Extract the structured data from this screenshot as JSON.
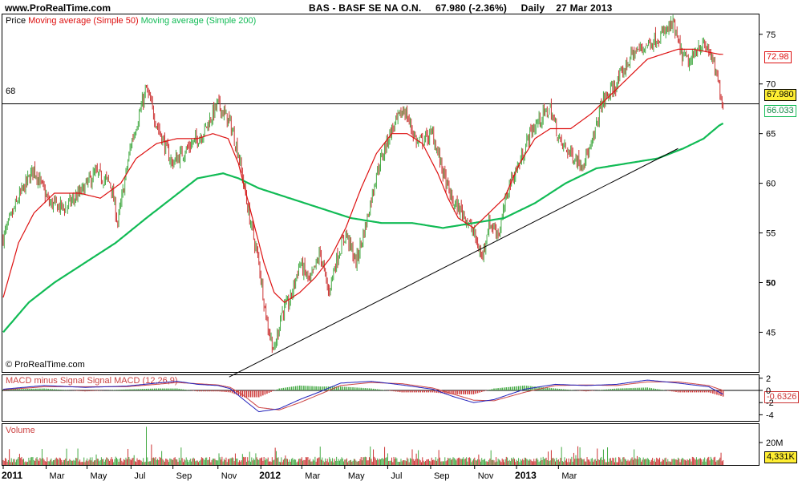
{
  "header": {
    "site": "www.ProRealTime.com",
    "symbol": "BAS - BASF SE NA O.N.",
    "quote": "67.980 (-2.36%)",
    "period": "Daily",
    "date": "27 Mar 2013"
  },
  "price_panel": {
    "legend_price": "Price",
    "legend_ma50": "Moving average (Simple 50)",
    "legend_ma200": "Moving average (Simple 200)",
    "hline_label": "68",
    "last_price_label": "67.980",
    "ma50_label": "72.98",
    "ma200_label": "66.033",
    "copyright": "© ProRealTime.com"
  },
  "macd_panel": {
    "legend": "MACD minus Signal Signal MACD (12,26,9)",
    "value_label": "-0.6326"
  },
  "volume_panel": {
    "legend": "Volume",
    "value_label": "4,331K"
  },
  "colors": {
    "ma50": "#dd1111",
    "ma200": "#11bb55",
    "candle_up": "#44aa44",
    "candle_down": "#cc3333",
    "last_price_bg": "#ffee33",
    "macd_line": "#2222bb",
    "signal_line": "#cc4444"
  },
  "chart_data": [
    {
      "type": "line",
      "title": "BAS - BASF SE NA O.N.",
      "subtitle": "Daily",
      "ylim": [
        41,
        77
      ],
      "y_ticks": [
        45,
        50,
        55,
        60,
        65,
        70,
        75
      ],
      "x_ticks": [
        "2011",
        "Mar",
        "May",
        "Jul",
        "Sep",
        "Nov",
        "2012",
        "Mar",
        "May",
        "Jul",
        "Sep",
        "Nov",
        "2013",
        "Mar"
      ],
      "price_anchors": [
        [
          0,
          54.5
        ],
        [
          15,
          58.5
        ],
        [
          30,
          61.5
        ],
        [
          45,
          58
        ],
        [
          60,
          57.5
        ],
        [
          75,
          59
        ],
        [
          90,
          61
        ],
        [
          105,
          60
        ],
        [
          112,
          56
        ],
        [
          125,
          64
        ],
        [
          140,
          69.5
        ],
        [
          150,
          66
        ],
        [
          165,
          62
        ],
        [
          180,
          63.5
        ],
        [
          195,
          65
        ],
        [
          210,
          68
        ],
        [
          222,
          66
        ],
        [
          230,
          63
        ],
        [
          240,
          57
        ],
        [
          250,
          52
        ],
        [
          258,
          46
        ],
        [
          265,
          43
        ],
        [
          272,
          47
        ],
        [
          280,
          48
        ],
        [
          290,
          52
        ],
        [
          300,
          50
        ],
        [
          310,
          53
        ],
        [
          318,
          49
        ],
        [
          325,
          52
        ],
        [
          335,
          55
        ],
        [
          345,
          52
        ],
        [
          355,
          56
        ],
        [
          365,
          61
        ],
        [
          378,
          65
        ],
        [
          392,
          67.5
        ],
        [
          405,
          64
        ],
        [
          420,
          65
        ],
        [
          433,
          60
        ],
        [
          440,
          58
        ],
        [
          450,
          57
        ],
        [
          460,
          55
        ],
        [
          468,
          52.5
        ],
        [
          475,
          56
        ],
        [
          485,
          55
        ],
        [
          495,
          60
        ],
        [
          505,
          62
        ],
        [
          515,
          65
        ],
        [
          525,
          66.5
        ],
        [
          535,
          67.5
        ],
        [
          545,
          64
        ],
        [
          555,
          63
        ],
        [
          565,
          62
        ],
        [
          575,
          63.5
        ],
        [
          585,
          68
        ],
        [
          600,
          70
        ],
        [
          615,
          73
        ],
        [
          630,
          74
        ],
        [
          645,
          75
        ],
        [
          655,
          76
        ],
        [
          663,
          73
        ],
        [
          672,
          72
        ],
        [
          680,
          74
        ],
        [
          690,
          73.5
        ],
        [
          697,
          71
        ],
        [
          704,
          68
        ]
      ],
      "series": [
        {
          "name": "Moving average (Simple 50)",
          "x": [
            0,
            15,
            30,
            50,
            75,
            95,
            115,
            130,
            150,
            170,
            190,
            205,
            220,
            230,
            240,
            255,
            265,
            275,
            290,
            305,
            320,
            335,
            350,
            365,
            380,
            395,
            410,
            425,
            435,
            445,
            460,
            475,
            490,
            505,
            520,
            535,
            555,
            575,
            595,
            615,
            630,
            645,
            660,
            675,
            690,
            700,
            704
          ],
          "values": [
            48.5,
            54,
            57,
            59,
            59,
            58.5,
            60,
            62.5,
            64,
            64.5,
            64.5,
            65,
            64.5,
            62,
            58,
            52,
            49,
            48,
            49,
            50.5,
            52.5,
            55.5,
            59.5,
            63,
            65,
            65,
            64,
            61,
            58.5,
            56.5,
            55.5,
            57,
            58.5,
            62,
            64.5,
            65.5,
            65.5,
            67,
            69,
            71,
            72.5,
            73,
            73.5,
            73.5,
            73.2,
            73.0,
            72.98
          ]
        },
        {
          "name": "Moving average (Simple 200)",
          "x": [
            0,
            25,
            50,
            80,
            110,
            140,
            165,
            190,
            215,
            230,
            250,
            280,
            310,
            340,
            370,
            400,
            430,
            460,
            490,
            520,
            550,
            580,
            610,
            640,
            665,
            685,
            700,
            704
          ],
          "values": [
            45,
            48,
            50,
            52,
            54,
            56.5,
            58.5,
            60.5,
            61,
            60.5,
            59.5,
            58.5,
            57.5,
            56.5,
            56,
            56,
            55.5,
            56,
            56.5,
            58,
            60,
            61.5,
            62,
            62.5,
            63.5,
            64.5,
            65.8,
            66.033
          ]
        },
        {
          "name": "trendline",
          "x": [
            221,
            660
          ],
          "values": [
            40.5,
            63.5
          ]
        },
        {
          "name": "horizontal line",
          "x": [
            0,
            720
          ],
          "values": [
            68,
            68
          ]
        }
      ]
    },
    {
      "type": "line",
      "title": "MACD (12,26,9)",
      "ylim": [
        -5,
        2.5
      ],
      "y_ticks": [
        2,
        0,
        -2,
        -4
      ],
      "series": [
        {
          "name": "MACD",
          "x": [
            0,
            40,
            80,
            120,
            150,
            170,
            190,
            210,
            222,
            235,
            250,
            270,
            290,
            310,
            330,
            360,
            390,
            420,
            440,
            460,
            480,
            510,
            540,
            570,
            600,
            630,
            660,
            690,
            704
          ],
          "values": [
            0.2,
            0.8,
            0.5,
            0.7,
            1.2,
            1.5,
            1.0,
            0.8,
            0.3,
            -1.5,
            -3.5,
            -3.0,
            -1.5,
            -0.2,
            1.2,
            1.5,
            0.9,
            0.2,
            -1.0,
            -2.0,
            -1.5,
            0.2,
            1.0,
            0.8,
            1.0,
            1.7,
            1.2,
            0.6,
            -0.6326
          ]
        },
        {
          "name": "Signal",
          "x": [
            0,
            40,
            80,
            120,
            150,
            170,
            190,
            210,
            222,
            235,
            250,
            270,
            290,
            310,
            330,
            360,
            390,
            420,
            440,
            460,
            480,
            510,
            540,
            570,
            600,
            630,
            660,
            690,
            704
          ],
          "values": [
            0.1,
            0.6,
            0.6,
            0.6,
            1.0,
            1.3,
            1.1,
            0.9,
            0.5,
            -0.8,
            -2.8,
            -3.2,
            -2.0,
            -0.6,
            0.8,
            1.3,
            1.1,
            0.4,
            -0.6,
            -1.6,
            -1.7,
            -0.3,
            0.8,
            0.9,
            0.8,
            1.4,
            1.4,
            0.8,
            0.0
          ]
        }
      ]
    },
    {
      "type": "bar",
      "title": "Volume",
      "ylim": [
        0,
        30000000
      ],
      "y_ticks": [
        "20M"
      ],
      "last_value": "4,331K"
    }
  ]
}
